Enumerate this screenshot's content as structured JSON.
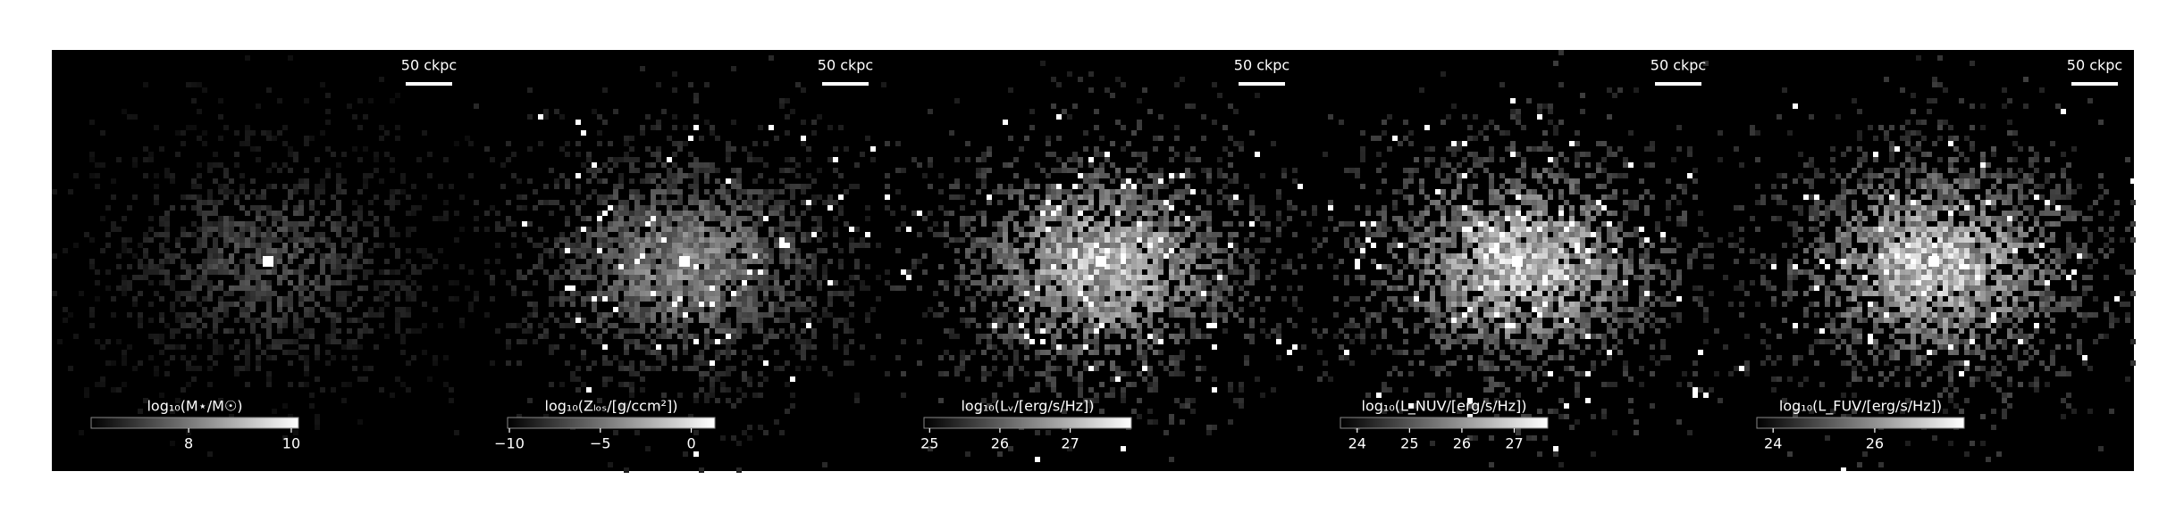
{
  "chart_data": [
    {
      "type": "image",
      "scale_label": "50 ckpc",
      "colorbar_label": "log₁₀(M⋆/M☉)",
      "clim": [
        6.1,
        10.14
      ],
      "cticks": [
        8,
        10
      ]
    },
    {
      "type": "image",
      "scale_label": "50 ckpc",
      "colorbar_label": "log₁₀(Zₗₒₛ/[g/ccm²])",
      "clim": [
        -10.1,
        1.3
      ],
      "cticks": [
        {
          "value": -10,
          "label": "−10"
        },
        {
          "value": -5,
          "label": "−5"
        },
        0
      ]
    },
    {
      "type": "image",
      "scale_label": "50 ckpc",
      "colorbar_label": "log₁₀(Lᵥ/[erg/s/Hz])",
      "clim": [
        24.92,
        27.87
      ],
      "cticks": [
        25,
        26,
        27
      ]
    },
    {
      "type": "image",
      "scale_label": "50 ckpc",
      "colorbar_label": "log₁₀(L_NUV/[erg/s/Hz])",
      "clim": [
        23.68,
        27.64
      ],
      "cticks": [
        24,
        25,
        26,
        27
      ]
    },
    {
      "type": "image",
      "scale_label": "50 ckpc",
      "colorbar_label": "log₁₀(L_FUV/[erg/s/Hz])",
      "clim": [
        23.68,
        27.76
      ],
      "cticks": [
        24,
        26
      ]
    }
  ]
}
